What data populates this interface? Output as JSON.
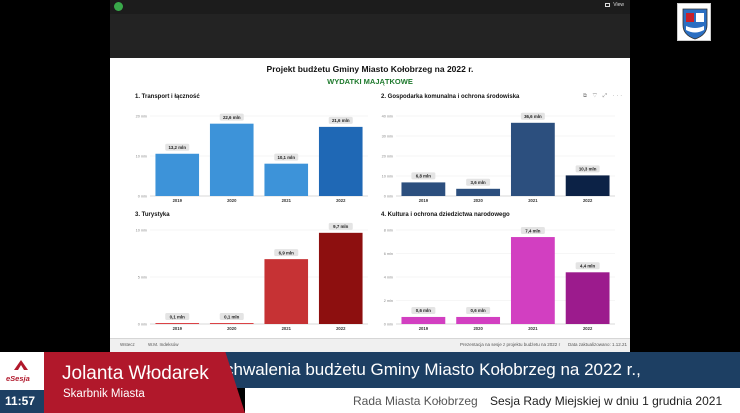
{
  "meeting": {
    "view_label": "View"
  },
  "slide": {
    "title": "Projekt budżetu Gminy Miasto Kołobrzeg na 2022 r.",
    "subtitle": "WYDATKI MAJĄTKOWE"
  },
  "chart_data": [
    {
      "type": "bar",
      "title": "1. Transport i łączność",
      "categories": [
        "2019",
        "2020",
        "2021",
        "2022"
      ],
      "values": [
        13.2,
        22.6,
        10.1,
        21.6
      ],
      "data_labels": [
        "13,2 mln",
        "22,6 mln",
        "10,1 mln",
        "21,6 mln"
      ],
      "yticks": [
        "0 mln",
        "10 mln",
        "20 mln"
      ],
      "ylim": [
        0,
        25
      ],
      "colors": [
        "#3d93d9",
        "#3d93d9",
        "#3d93d9",
        "#1f68b5"
      ]
    },
    {
      "type": "bar",
      "title": "2. Gospodarka komunalna i ochrona środowiska",
      "categories": [
        "2019",
        "2020",
        "2021",
        "2022"
      ],
      "values": [
        6.8,
        3.6,
        36.6,
        10.3
      ],
      "data_labels": [
        "6,8 mln",
        "3,6 mln",
        "36,6 mln",
        "10,3 mln"
      ],
      "yticks": [
        "0 mln",
        "10 mln",
        "20 mln",
        "30 mln",
        "40 mln"
      ],
      "ylim": [
        0,
        40
      ],
      "colors": [
        "#2c4f7e",
        "#2c4f7e",
        "#2c4f7e",
        "#0c2246"
      ]
    },
    {
      "type": "bar",
      "title": "3. Turystyka",
      "categories": [
        "2019",
        "2020",
        "2021",
        "2022"
      ],
      "values": [
        0.1,
        0.1,
        6.9,
        9.7
      ],
      "data_labels": [
        "0,1 mln",
        "0,1 mln",
        "6,9 mln",
        "9,7 mln"
      ],
      "yticks": [
        "0 mln",
        "5 mln",
        "10 mln"
      ],
      "ylim": [
        0,
        10
      ],
      "colors": [
        "#d9373a",
        "#d9373a",
        "#c63234",
        "#8d0f0f"
      ]
    },
    {
      "type": "bar",
      "title": "4. Kultura i ochrona dziedzictwa narodowego",
      "categories": [
        "2019",
        "2020",
        "2021",
        "2022"
      ],
      "values": [
        0.6,
        0.6,
        7.4,
        4.4
      ],
      "data_labels": [
        "0,6 mln",
        "0,6 mln",
        "7,4 mln",
        "4,4 mln"
      ],
      "yticks": [
        "0 mln",
        "2 mln",
        "4 mln",
        "6 mln",
        "8 mln"
      ],
      "ylim": [
        0,
        8
      ],
      "colors": [
        "#d23fc1",
        "#d23fc1",
        "#d23fc1",
        "#9c1b8d"
      ]
    }
  ],
  "toolbar": {
    "wstecz": "Wstecz",
    "nav": "W.M. Indeksów",
    "presentation": "Prezentacja na sesje z projektu budżetu na 2022 r",
    "date": "Data zaktualizowano: 1.12.21"
  },
  "ticker": {
    "text": "chwalenia budżetu Gminy Miasto Kołobrzeg na 2022 r.,"
  },
  "speaker": {
    "name": "Jolanta Włodarek",
    "role": "Skarbnik Miasta"
  },
  "brand": {
    "name": "eSesja"
  },
  "clock": {
    "time": "11:57"
  },
  "footer": {
    "council": "Rada Miasta Kołobrzeg",
    "session": "Sesja Rady Miejskiej w dniu 1 grudnia 2021"
  }
}
